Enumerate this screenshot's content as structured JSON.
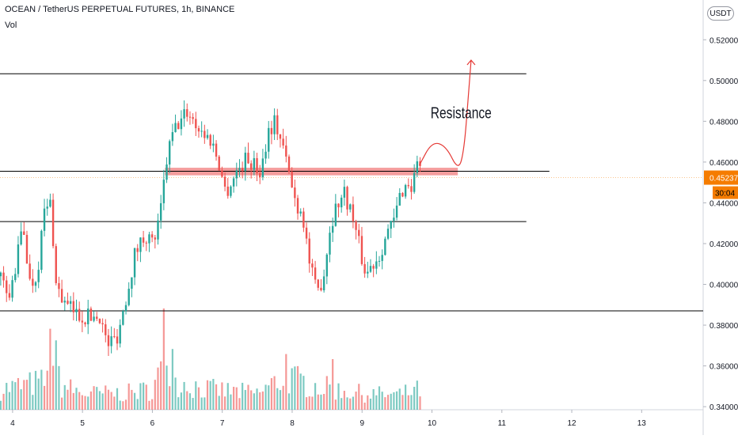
{
  "header": {
    "title": "OCEAN / TetherUS PERPETUAL FUTURES, 1h, BINANCE",
    "indicator": "Vol"
  },
  "price_axis": {
    "currency_button": "USDT",
    "current_price": "0.45237",
    "countdown": "30:04"
  },
  "colors": {
    "up": "#26a69a",
    "down": "#ef5350",
    "zone": "#f28b8b",
    "annotation": "#e53935",
    "price_tag": "#f57c00",
    "axis_text": "#131722"
  },
  "chart_data": {
    "type": "candlestick",
    "y_ticks": [
      0.52,
      0.5,
      0.48,
      0.46,
      0.44,
      0.42,
      0.4,
      0.38,
      0.36,
      0.34
    ],
    "y_tick_labels": [
      "0.52000",
      "0.50000",
      "0.48000",
      "0.46000",
      "0.44000",
      "0.42000",
      "0.40000",
      "0.38000",
      "0.36000",
      "0.34000"
    ],
    "ylim": [
      0.3385,
      0.5395
    ],
    "x_ticks": [
      4,
      5,
      6,
      7,
      8,
      9,
      10,
      11,
      12,
      13
    ],
    "x_tick_labels": [
      "4",
      "5",
      "6",
      "7",
      "8",
      "9",
      "10",
      "11",
      "12",
      "13"
    ],
    "xlim": [
      3.82,
      13.88
    ],
    "series": [
      {
        "price_waypoints": [
          [
            3.82,
            0.404
          ],
          [
            3.95,
            0.392
          ],
          [
            4.05,
            0.41
          ],
          [
            4.15,
            0.43
          ],
          [
            4.25,
            0.4
          ],
          [
            4.35,
            0.405
          ],
          [
            4.45,
            0.435
          ],
          [
            4.55,
            0.44
          ],
          [
            4.62,
            0.4
          ],
          [
            4.75,
            0.39
          ],
          [
            4.95,
            0.385
          ],
          [
            5.1,
            0.384
          ],
          [
            5.25,
            0.385
          ],
          [
            5.35,
            0.37
          ],
          [
            5.5,
            0.375
          ],
          [
            5.6,
            0.39
          ],
          [
            5.75,
            0.415
          ],
          [
            5.9,
            0.425
          ],
          [
            6.0,
            0.42
          ],
          [
            6.1,
            0.43
          ],
          [
            6.2,
            0.46
          ],
          [
            6.3,
            0.475
          ],
          [
            6.5,
            0.485
          ],
          [
            6.7,
            0.475
          ],
          [
            6.85,
            0.47
          ],
          [
            6.95,
            0.46
          ],
          [
            7.05,
            0.445
          ],
          [
            7.2,
            0.455
          ],
          [
            7.35,
            0.462
          ],
          [
            7.55,
            0.455
          ],
          [
            7.65,
            0.475
          ],
          [
            7.75,
            0.48
          ],
          [
            7.85,
            0.47
          ],
          [
            7.95,
            0.455
          ],
          [
            8.05,
            0.44
          ],
          [
            8.15,
            0.435
          ],
          [
            8.25,
            0.41
          ],
          [
            8.35,
            0.395
          ],
          [
            8.45,
            0.405
          ],
          [
            8.55,
            0.43
          ],
          [
            8.65,
            0.44
          ],
          [
            8.75,
            0.445
          ],
          [
            8.85,
            0.435
          ],
          [
            8.95,
            0.42
          ],
          [
            9.05,
            0.405
          ],
          [
            9.15,
            0.41
          ],
          [
            9.25,
            0.415
          ],
          [
            9.35,
            0.425
          ],
          [
            9.45,
            0.43
          ],
          [
            9.55,
            0.445
          ],
          [
            9.65,
            0.45
          ],
          [
            9.72,
            0.447
          ],
          [
            9.8,
            0.465
          ],
          [
            9.85,
            0.452
          ]
        ],
        "volume_profile": [
          [
            3.82,
            0.25
          ],
          [
            4.5,
            0.35
          ],
          [
            4.6,
            0.65
          ],
          [
            4.7,
            0.3
          ],
          [
            5.0,
            0.2
          ],
          [
            5.6,
            0.2
          ],
          [
            6.0,
            0.25
          ],
          [
            6.1,
            0.45
          ],
          [
            6.2,
            0.65
          ],
          [
            6.3,
            0.35
          ],
          [
            6.8,
            0.25
          ],
          [
            7.5,
            0.2
          ],
          [
            7.9,
            0.4
          ],
          [
            8.3,
            0.3
          ],
          [
            8.6,
            0.25
          ],
          [
            9.0,
            0.2
          ],
          [
            9.5,
            0.18
          ],
          [
            9.85,
            0.25
          ]
        ],
        "volume_spikes": [
          [
            6.17,
            1.0
          ],
          [
            4.55,
            0.8
          ],
          [
            7.9,
            0.55
          ],
          [
            8.58,
            0.5
          ],
          [
            6.27,
            0.6
          ]
        ]
      }
    ],
    "horizontal_lines": [
      {
        "price": 0.5033,
        "x_end": 11.35
      },
      {
        "price": 0.4555,
        "x_end": 11.68
      },
      {
        "price": 0.4308,
        "x_end": 11.35
      },
      {
        "price": 0.387,
        "x_end": 13.88
      }
    ],
    "resistance_zone": {
      "x_start": 6.18,
      "x_end": 10.37,
      "price_low": 0.4535,
      "price_high": 0.4572
    },
    "current_price": 0.45237,
    "annotation": {
      "text": "Resistance",
      "x": 9.98,
      "price": 0.4815
    },
    "arrow_path": [
      [
        9.82,
        0.4585
      ],
      [
        10.0,
        0.47
      ],
      [
        10.2,
        0.468
      ],
      [
        10.38,
        0.4555
      ],
      [
        10.46,
        0.466
      ],
      [
        10.52,
        0.492
      ],
      [
        10.56,
        0.51
      ]
    ]
  }
}
